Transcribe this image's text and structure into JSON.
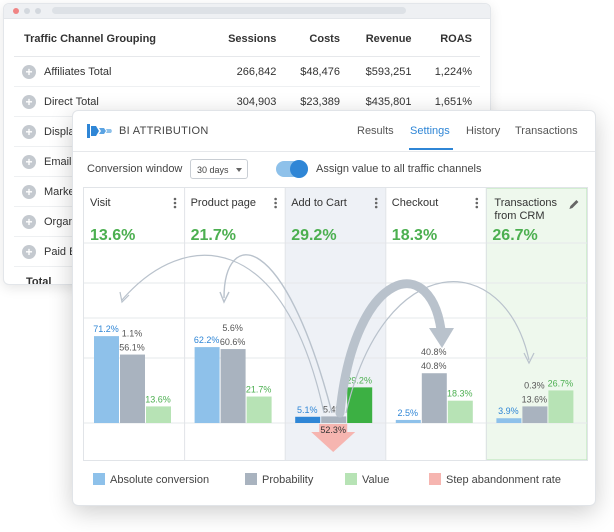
{
  "back_table": {
    "headers": [
      "Traffic Channel Grouping",
      "Sessions",
      "Costs",
      "Revenue",
      "ROAS"
    ],
    "rows": [
      [
        "Affiliates Total",
        "266,842",
        "$48,476",
        "$593,251",
        "1,224%"
      ],
      [
        "Direct Total",
        "304,903",
        "$23,389",
        "$435,801",
        "1,651%"
      ],
      [
        "Display Total",
        "",
        "",
        "",
        ""
      ],
      [
        "Email Total",
        "",
        "",
        "",
        ""
      ],
      [
        "Marketing Total",
        "",
        "",
        "",
        ""
      ],
      [
        "Organic Total",
        "",
        "",
        "",
        ""
      ],
      [
        "Paid Bo",
        "",
        "",
        "",
        ""
      ]
    ],
    "total_label": "Total",
    "plus_symbol": "+"
  },
  "app": {
    "title": "BI ATTRIBUTION",
    "tabs": [
      "Results",
      "Settings",
      "History",
      "Transactions"
    ],
    "active_tab": "Settings",
    "conversion_window_label": "Conversion window",
    "conversion_window_value": "30 days",
    "assign_label": "Assign value to all traffic channels",
    "assign_enabled": true
  },
  "colors": {
    "absolute": "#8ec1ea",
    "absolute_dark": "#2f86d6",
    "probability": "#a9b3bf",
    "value": "#b7e3b5",
    "value_dark": "#3cb043",
    "abandon": "#f6b5b0",
    "accent": "#2f86d6",
    "green_text": "#4caf50",
    "highlight_stage": "#eef1f6",
    "transactions_stage": "#eef8ed"
  },
  "chart_data": {
    "type": "bar",
    "stages": [
      {
        "name": "Visit",
        "rate": "13.6%",
        "absolute": 71.2,
        "probability": 56.1,
        "value": 13.6,
        "probability_secondary": 1.1,
        "label_abs": "71.2%",
        "label_prob": "56.1%",
        "label_prob2": "1.1%",
        "label_value": "13.6%"
      },
      {
        "name": "Product page",
        "rate": "21.7%",
        "absolute": 62.2,
        "probability": 60.6,
        "value": 21.7,
        "probability_secondary": 5.6,
        "label_abs": "62.2%",
        "label_prob": "60.6%",
        "label_prob2": "5.6%",
        "label_value": "21.7%"
      },
      {
        "name": "Add to Cart",
        "rate": "29.2%",
        "absolute": 5.1,
        "probability": 5.4,
        "value": 29.2,
        "abandonment": 52.3,
        "label_abs": "5.1%",
        "label_prob": "5.4%",
        "label_value": "29.2%",
        "label_abandon": "52.3%"
      },
      {
        "name": "Checkout",
        "rate": "18.3%",
        "absolute": 2.5,
        "probability": 40.8,
        "value": 18.3,
        "probability_secondary": 40.8,
        "label_abs": "2.5%",
        "label_prob": "40.8%",
        "label_prob2": "40.8%",
        "label_value": "18.3%"
      },
      {
        "name": "Transactions from CRM",
        "rate": "26.7%",
        "absolute": 3.9,
        "probability": 13.6,
        "value": 26.7,
        "probability_secondary": 0.3,
        "label_abs": "3.9%",
        "label_prob": "13.6%",
        "label_prob2": "0.3%",
        "label_value": "26.7%"
      }
    ],
    "legend": [
      "Absolute conversion",
      "Probability",
      "Value",
      "Step abandonment rate"
    ],
    "ylim": [
      0,
      100
    ]
  }
}
